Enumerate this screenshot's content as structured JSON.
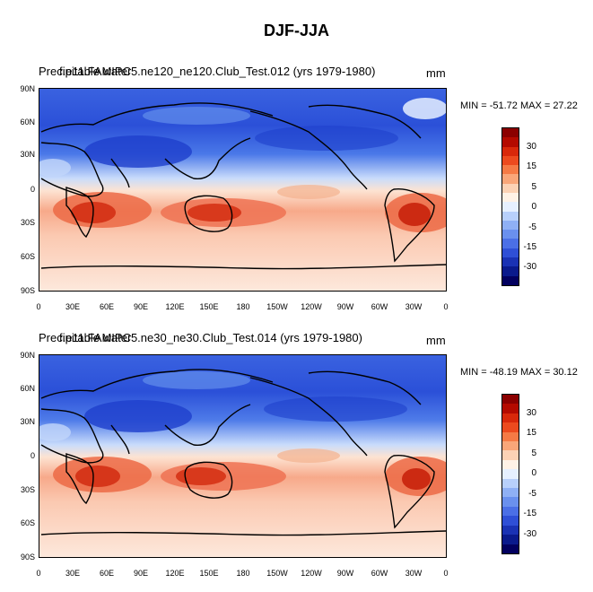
{
  "figure": {
    "title": "DJF-JJA"
  },
  "panels": [
    {
      "title_left": "Precipitable water",
      "title_overlap": "f.e11.FAMIPC5.ne120_ne120.Club_Test.012 (yrs 1979-1980)",
      "units": "mm",
      "min_label": "MIN = -51.72",
      "max_label": "MAX =  27.22",
      "minmax_text": "MIN = -51.72 MAX =  27.22"
    },
    {
      "title_left": "Precipitable water",
      "title_overlap": "f.e11.FAMIPC5.ne30_ne30.Club_Test.014 (yrs 1979-1980)",
      "units": "mm",
      "minmax_text": "MIN = -48.19 MAX =  30.12"
    }
  ],
  "axes": {
    "lat_ticks": [
      "90N",
      "60N",
      "30N",
      "0",
      "30S",
      "60S",
      "90S"
    ],
    "lon_ticks": [
      "0",
      "30E",
      "60E",
      "90E",
      "120E",
      "150E",
      "180",
      "150W",
      "120W",
      "90W",
      "60W",
      "30W",
      "0"
    ]
  },
  "colorbar": {
    "labels": [
      "30",
      "15",
      "5",
      "0",
      "-5",
      "-15",
      "-30"
    ],
    "colors": [
      "#8b0000",
      "#b40a00",
      "#d8280a",
      "#ec4a1e",
      "#f57a45",
      "#f9a679",
      "#fcd2b5",
      "#fff2e6",
      "#e6f0ff",
      "#b8d0fb",
      "#8fb0f5",
      "#6a90ee",
      "#4b6fe6",
      "#2f4fd6",
      "#1a32b4",
      "#0a1a8c",
      "#02005f"
    ]
  },
  "colors": {
    "strong_negative": "#1e40d0",
    "negative": "#5a86ec",
    "weak_negative": "#b3cdf8",
    "neutral": "#fbe6d8",
    "weak_positive": "#f7b497",
    "positive": "#f07b5a",
    "strong_positive": "#dc3a1c"
  }
}
